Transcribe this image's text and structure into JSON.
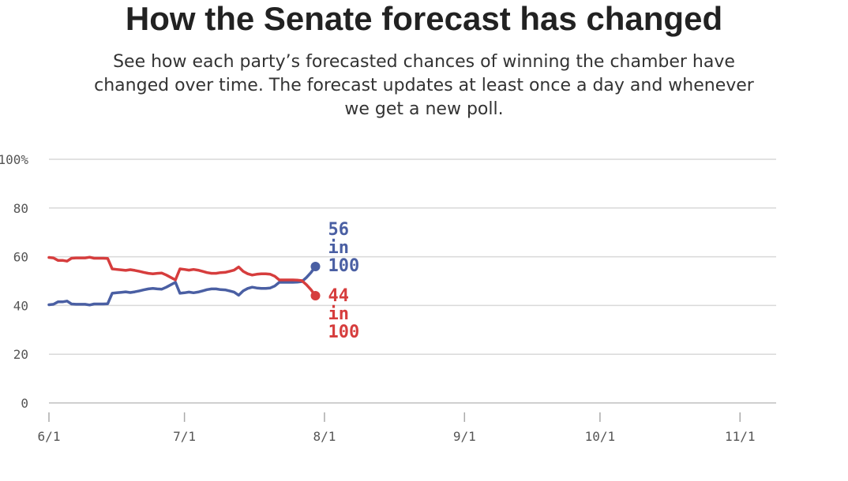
{
  "header": {
    "title": "How the Senate forecast has changed",
    "subtitle": "See how each party’s forecasted chances of winning the chamber have changed over time. The forecast updates at least once a day and whenever we get a new poll."
  },
  "chart_data": {
    "type": "line",
    "title": "How the Senate forecast has changed",
    "xlabel": "",
    "ylabel": "",
    "x_start": "6/1",
    "xlim": [
      "6/1",
      "11/9"
    ],
    "ylim": [
      0,
      100
    ],
    "yticks": [
      0,
      20,
      40,
      60,
      80,
      100
    ],
    "ytick_labels": [
      "0",
      "20",
      "40",
      "60",
      "80",
      "100%"
    ],
    "xticks": [
      "6/1",
      "7/1",
      "8/1",
      "9/1",
      "10/1",
      "11/1"
    ],
    "grid": true,
    "legend": "none",
    "series": [
      {
        "name": "",
        "color": "#4a5fa3",
        "x": [
          "6/1",
          "6/2",
          "6/3",
          "6/4",
          "6/5",
          "6/6",
          "6/7",
          "6/8",
          "6/9",
          "6/10",
          "6/11",
          "6/12",
          "6/13",
          "6/14",
          "6/15",
          "6/16",
          "6/17",
          "6/18",
          "6/19",
          "6/20",
          "6/21",
          "6/22",
          "6/23",
          "6/24",
          "6/25",
          "6/26",
          "6/27",
          "6/28",
          "6/29",
          "6/30",
          "7/1",
          "7/2",
          "7/3",
          "7/4",
          "7/5",
          "7/6",
          "7/7",
          "7/8",
          "7/9",
          "7/10",
          "7/11",
          "7/12",
          "7/13",
          "7/14",
          "7/15",
          "7/16",
          "7/17",
          "7/18",
          "7/19",
          "7/20",
          "7/21",
          "7/22",
          "7/23",
          "7/24",
          "7/25",
          "7/26",
          "7/27",
          "7/28",
          "7/29",
          "7/30"
        ],
        "y": [
          40.3,
          40.5,
          41.5,
          41.5,
          41.8,
          40.6,
          40.5,
          40.5,
          40.5,
          40.2,
          40.6,
          40.6,
          40.6,
          40.7,
          45.0,
          45.2,
          45.4,
          45.6,
          45.3,
          45.6,
          46.0,
          46.4,
          46.8,
          47.0,
          46.8,
          46.7,
          47.5,
          48.5,
          49.5,
          45.0,
          45.2,
          45.5,
          45.2,
          45.5,
          46.0,
          46.5,
          46.8,
          46.8,
          46.5,
          46.4,
          46.0,
          45.5,
          44.2,
          46.0,
          47.0,
          47.5,
          47.2,
          47.0,
          47.0,
          47.2,
          48.0,
          49.5,
          49.5,
          49.5,
          49.5,
          49.6,
          49.8,
          51.5,
          53.5,
          56.0
        ],
        "end_label": {
          "value": "56",
          "line2": "in",
          "line3": "100"
        }
      },
      {
        "name": "",
        "color": "#d63d3d",
        "x": [
          "6/1",
          "6/2",
          "6/3",
          "6/4",
          "6/5",
          "6/6",
          "6/7",
          "6/8",
          "6/9",
          "6/10",
          "6/11",
          "6/12",
          "6/13",
          "6/14",
          "6/15",
          "6/16",
          "6/17",
          "6/18",
          "6/19",
          "6/20",
          "6/21",
          "6/22",
          "6/23",
          "6/24",
          "6/25",
          "6/26",
          "6/27",
          "6/28",
          "6/29",
          "6/30",
          "7/1",
          "7/2",
          "7/3",
          "7/4",
          "7/5",
          "7/6",
          "7/7",
          "7/8",
          "7/9",
          "7/10",
          "7/11",
          "7/12",
          "7/13",
          "7/14",
          "7/15",
          "7/16",
          "7/17",
          "7/18",
          "7/19",
          "7/20",
          "7/21",
          "7/22",
          "7/23",
          "7/24",
          "7/25",
          "7/26",
          "7/27",
          "7/28",
          "7/29",
          "7/30"
        ],
        "y": [
          59.7,
          59.5,
          58.5,
          58.5,
          58.2,
          59.4,
          59.5,
          59.5,
          59.5,
          59.8,
          59.4,
          59.4,
          59.4,
          59.3,
          55.0,
          54.8,
          54.6,
          54.4,
          54.7,
          54.4,
          54.0,
          53.6,
          53.2,
          53.0,
          53.2,
          53.3,
          52.5,
          51.5,
          50.5,
          55.0,
          54.8,
          54.5,
          54.8,
          54.5,
          54.0,
          53.5,
          53.2,
          53.2,
          53.5,
          53.6,
          54.0,
          54.5,
          55.8,
          54.0,
          53.0,
          52.5,
          52.8,
          53.0,
          53.0,
          52.8,
          52.0,
          50.5,
          50.5,
          50.5,
          50.5,
          50.4,
          50.2,
          48.5,
          46.5,
          44.0
        ],
        "end_label": {
          "value": "44",
          "line2": "in",
          "line3": "100"
        }
      }
    ]
  }
}
